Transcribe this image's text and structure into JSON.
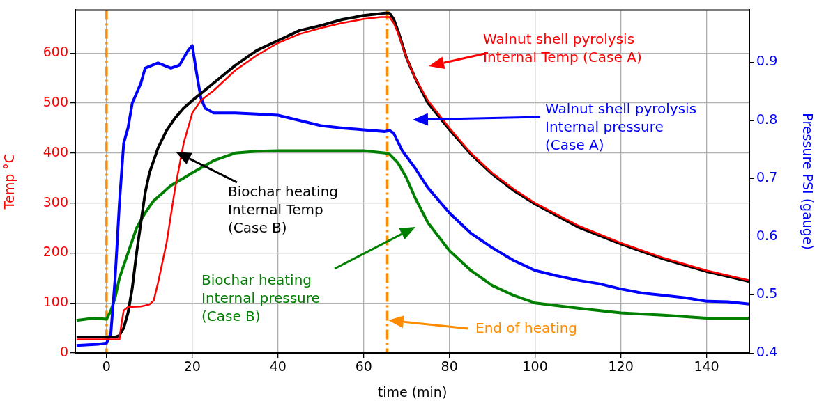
{
  "chart_data": {
    "type": "line",
    "xlabel": "time (min)",
    "ylabel": "Temp °C",
    "y2label": "Pressure PSI (gauge)",
    "xlim": [
      -7.3,
      150
    ],
    "xticks": [
      0,
      20,
      40,
      60,
      80,
      100,
      120,
      140
    ],
    "ylim": [
      0,
      686
    ],
    "yticks": [
      0,
      100,
      200,
      300,
      400,
      500,
      600
    ],
    "y2lim": [
      0.4,
      0.99
    ],
    "y2ticks": [
      0.4,
      0.5,
      0.6,
      0.7,
      0.8,
      0.9
    ],
    "grid": true,
    "legend": false,
    "marker": "none",
    "series": [
      {
        "color": "#ff0000",
        "x": [
          -7,
          3,
          3.5,
          4,
          5,
          8,
          10,
          11,
          12,
          14,
          16,
          18,
          20,
          22,
          25,
          30,
          35,
          40,
          45,
          50,
          55,
          60,
          64,
          66,
          67,
          68,
          70,
          72,
          75,
          80,
          85,
          90,
          95,
          100,
          110,
          120,
          130,
          140,
          150
        ],
        "values": [
          27,
          27,
          60,
          85,
          92,
          93,
          97,
          105,
          140,
          220,
          330,
          420,
          480,
          505,
          525,
          565,
          595,
          620,
          638,
          650,
          660,
          668,
          672,
          672,
          660,
          640,
          590,
          550,
          505,
          450,
          400,
          360,
          328,
          300,
          255,
          220,
          190,
          165,
          145
        ]
      },
      {
        "color": "#000000",
        "x": [
          -7,
          2,
          3,
          4,
          5,
          6,
          7,
          8,
          9,
          10,
          12,
          14,
          16,
          18,
          20,
          25,
          30,
          35,
          40,
          45,
          50,
          55,
          60,
          65,
          66,
          67,
          68,
          70,
          72,
          75,
          80,
          85,
          90,
          95,
          100,
          110,
          120,
          130,
          140,
          150
        ],
        "values": [
          32,
          32,
          35,
          50,
          80,
          130,
          200,
          260,
          320,
          360,
          410,
          445,
          470,
          490,
          505,
          540,
          575,
          605,
          625,
          645,
          655,
          667,
          675,
          680,
          680,
          668,
          645,
          590,
          550,
          500,
          447,
          398,
          358,
          325,
          298,
          252,
          218,
          188,
          163,
          143
        ]
      },
      {
        "color": "#0000ff",
        "axis": "y2",
        "x": [
          -7,
          -2,
          0,
          1,
          2,
          3,
          4,
          5,
          6,
          8,
          9,
          12,
          15,
          17,
          19,
          20,
          21,
          22,
          23,
          25,
          30,
          35,
          40,
          45,
          50,
          55,
          60,
          65,
          66,
          67,
          69,
          72,
          75,
          80,
          85,
          90,
          95,
          100,
          105,
          110,
          115,
          120,
          125,
          130,
          135,
          140,
          145,
          150
        ],
        "values": [
          0.413,
          0.415,
          0.417,
          0.434,
          0.529,
          0.658,
          0.761,
          0.787,
          0.83,
          0.864,
          0.89,
          0.899,
          0.89,
          0.895,
          0.92,
          0.929,
          0.882,
          0.839,
          0.821,
          0.813,
          0.813,
          0.811,
          0.809,
          0.8,
          0.791,
          0.787,
          0.784,
          0.781,
          0.783,
          0.778,
          0.748,
          0.718,
          0.684,
          0.641,
          0.606,
          0.581,
          0.559,
          0.542,
          0.533,
          0.525,
          0.519,
          0.51,
          0.503,
          0.499,
          0.495,
          0.489,
          0.488,
          0.484
        ]
      },
      {
        "color": "#008000",
        "axis": "y2",
        "x": [
          -7,
          -3,
          0,
          1,
          2,
          3,
          5,
          7,
          9,
          11,
          13,
          15,
          18,
          20,
          25,
          30,
          35,
          40,
          50,
          60,
          65,
          66,
          68,
          70,
          72,
          75,
          80,
          85,
          90,
          95,
          100,
          110,
          120,
          130,
          140,
          150
        ],
        "values": [
          0.456,
          0.46,
          0.458,
          0.473,
          0.495,
          0.529,
          0.572,
          0.615,
          0.641,
          0.662,
          0.675,
          0.688,
          0.701,
          0.71,
          0.731,
          0.744,
          0.747,
          0.748,
          0.748,
          0.748,
          0.744,
          0.742,
          0.727,
          0.701,
          0.667,
          0.624,
          0.576,
          0.542,
          0.516,
          0.499,
          0.486,
          0.477,
          0.469,
          0.465,
          0.46,
          0.46
        ]
      }
    ],
    "ref_lines": [
      {
        "axis": "x",
        "value": 0,
        "color": "#ff8c00",
        "line_style": "dashed"
      },
      {
        "axis": "x",
        "value": 65.5,
        "color": "#ff8c00",
        "line_style": "dashed"
      }
    ],
    "annotations": [
      "Walnut shell pyrolysis\nInternal Temp (Case A)",
      "Walnut shell pyrolysis\nInternal pressure\n(Case A)",
      "Biochar heating\nInternal Temp\n(Case B)",
      "Biochar heating\nInternal pressure\n(Case B)",
      "End of heating"
    ]
  }
}
